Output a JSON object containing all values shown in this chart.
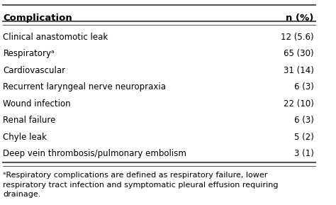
{
  "headers": [
    "Complication",
    "n (%)"
  ],
  "rows": [
    [
      "Clinical anastomotic leak",
      "12 (5.6)"
    ],
    [
      "Respiratoryᵃ",
      "65 (30)"
    ],
    [
      "Cardiovascular",
      "31 (14)"
    ],
    [
      "Recurrent laryngeal nerve neuropraxia",
      "6 (3)"
    ],
    [
      "Wound infection",
      "22 (10)"
    ],
    [
      "Renal failure",
      "6 (3)"
    ],
    [
      "Chyle leak",
      "5 (2)"
    ],
    [
      "Deep vein thrombosis/pulmonary embolism",
      "3 (1)"
    ]
  ],
  "footnote": "ᵃRespiratory complications are defined as respiratory failure, lower\nrespiratory tract infection and symptomatic pleural effusion requiring\ndrainage.",
  "header_color": "#000000",
  "text_color": "#000000",
  "line_color": "#555555",
  "font_size": 8.5,
  "header_font_size": 9.5,
  "footnote_font_size": 8.0
}
